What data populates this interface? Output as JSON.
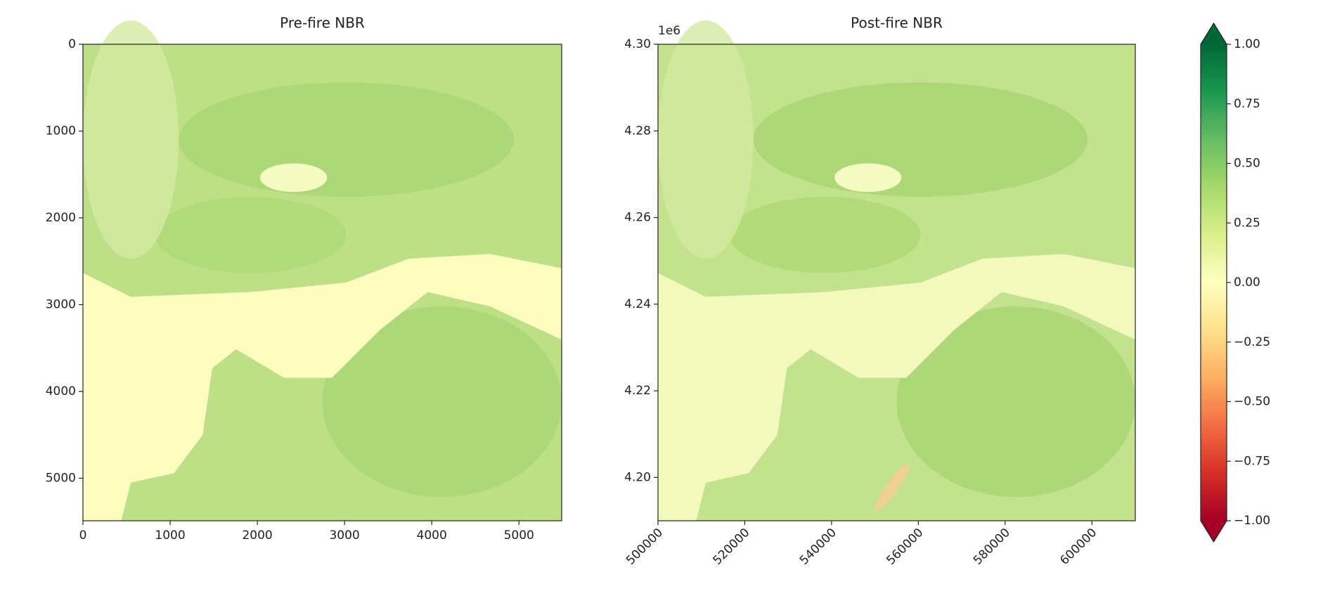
{
  "chart_data": [
    {
      "type": "image",
      "title": "Pre-fire NBR",
      "xlim": [
        0,
        5490
      ],
      "ylim": [
        5490,
        0
      ],
      "xticks": [
        0,
        1000,
        2000,
        3000,
        4000,
        5000
      ],
      "yticks": [
        0,
        1000,
        2000,
        3000,
        4000,
        5000
      ]
    },
    {
      "type": "image",
      "title": "Post-fire NBR",
      "xlim": [
        500000,
        610000
      ],
      "ylim": [
        4190000,
        4300000
      ],
      "xticks": [
        500000,
        520000,
        540000,
        560000,
        580000,
        600000
      ],
      "xtick_rotation": 45,
      "yticks": [
        {
          "value": 4200000,
          "label": "4.20"
        },
        {
          "value": 4220000,
          "label": "4.22"
        },
        {
          "value": 4240000,
          "label": "4.24"
        },
        {
          "value": 4260000,
          "label": "4.26"
        },
        {
          "value": 4280000,
          "label": "4.28"
        },
        {
          "value": 4300000,
          "label": "4.30"
        }
      ],
      "y_offset_text": "1e6"
    },
    {
      "type": "colorbar",
      "colormap": "RdYlGn",
      "colors": [
        "#a50026",
        "#d73027",
        "#f46d43",
        "#fdae61",
        "#fee08b",
        "#ffffbf",
        "#d9ef8b",
        "#a6d96a",
        "#66bd63",
        "#1a9850",
        "#006837"
      ],
      "extend": "both",
      "ylim": [
        -1,
        1
      ],
      "yticks": [
        {
          "value": -1,
          "label": "−1.00"
        },
        {
          "value": -0.75,
          "label": "−0.75"
        },
        {
          "value": -0.5,
          "label": "−0.50"
        },
        {
          "value": -0.25,
          "label": "−0.25"
        },
        {
          "value": 0,
          "label": "0.00"
        },
        {
          "value": 0.25,
          "label": "0.25"
        },
        {
          "value": 0.5,
          "label": "0.50"
        },
        {
          "value": 0.75,
          "label": "0.75"
        },
        {
          "value": 1,
          "label": "1.00"
        }
      ]
    }
  ]
}
